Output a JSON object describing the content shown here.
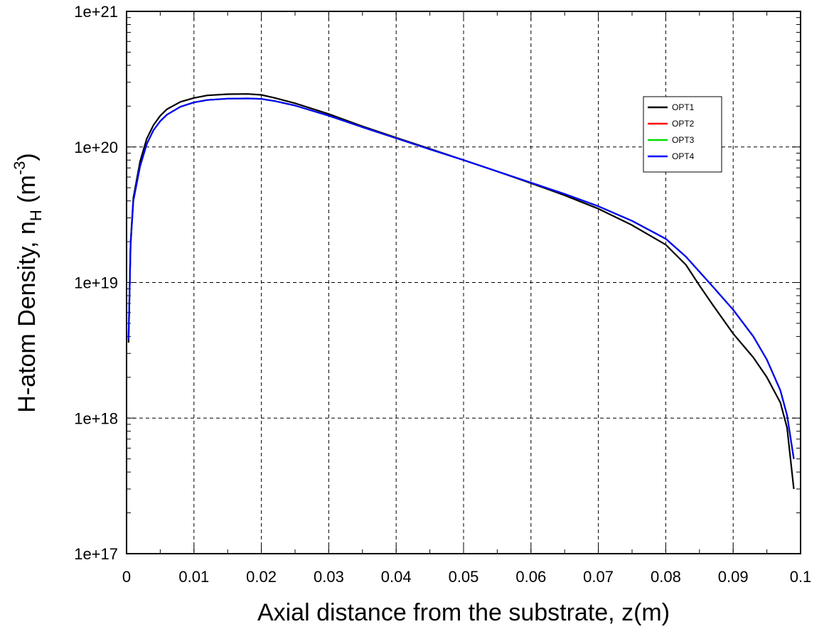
{
  "chart_data": {
    "type": "line",
    "title": "",
    "xlabel": "Axial distance from the substrate, z(m)",
    "ylabel_main": "H-atom Density,  n",
    "ylabel_sub": "H",
    "ylabel_unit_open": " (m",
    "ylabel_unit_exp": "-3",
    "ylabel_unit_close": ")",
    "xlim": [
      0,
      0.1
    ],
    "ylim": [
      1e+17,
      1e+21
    ],
    "yscale": "log",
    "grid": true,
    "legend_position": "top-right",
    "x_ticks": [
      "0",
      "0.01",
      "0.02",
      "0.03",
      "0.04",
      "0.05",
      "0.06",
      "0.07",
      "0.08",
      "0.09",
      "0.1"
    ],
    "y_ticks": [
      "1e+17",
      "1e+18",
      "1e+19",
      "1e+20",
      "1e+21"
    ],
    "series": [
      {
        "name": "OPT1",
        "color": "#000000",
        "points": [
          [
            0.0003,
            3.6e+18
          ],
          [
            0.0006,
            2e+19
          ],
          [
            0.001,
            4.2e+19
          ],
          [
            0.002,
            7.8e+19
          ],
          [
            0.003,
            1.15e+20
          ],
          [
            0.004,
            1.45e+20
          ],
          [
            0.005,
            1.7e+20
          ],
          [
            0.006,
            1.9e+20
          ],
          [
            0.008,
            2.15e+20
          ],
          [
            0.01,
            2.3e+20
          ],
          [
            0.012,
            2.4e+20
          ],
          [
            0.015,
            2.45e+20
          ],
          [
            0.018,
            2.46e+20
          ],
          [
            0.02,
            2.42e+20
          ],
          [
            0.022,
            2.3e+20
          ],
          [
            0.025,
            2.1e+20
          ],
          [
            0.03,
            1.75e+20
          ],
          [
            0.035,
            1.42e+20
          ],
          [
            0.04,
            1.17e+20
          ],
          [
            0.045,
            9.7e+19
          ],
          [
            0.05,
            8e+19
          ],
          [
            0.055,
            6.6e+19
          ],
          [
            0.06,
            5.4e+19
          ],
          [
            0.065,
            4.4e+19
          ],
          [
            0.07,
            3.5e+19
          ],
          [
            0.075,
            2.65e+19
          ],
          [
            0.08,
            1.9e+19
          ],
          [
            0.083,
            1.35e+19
          ],
          [
            0.085,
            9.5e+18
          ],
          [
            0.087,
            6.8e+18
          ],
          [
            0.09,
            4.2e+18
          ],
          [
            0.093,
            2.8e+18
          ],
          [
            0.095,
            2e+18
          ],
          [
            0.097,
            1.3e+18
          ],
          [
            0.098,
            8.5e+17
          ],
          [
            0.099,
            3e+17
          ]
        ]
      },
      {
        "name": "OPT2",
        "color": "#ff0000",
        "points": [
          [
            0.0003,
            4e+18
          ],
          [
            0.0006,
            1.9e+19
          ],
          [
            0.001,
            4e+19
          ],
          [
            0.002,
            7.2e+19
          ],
          [
            0.003,
            1.05e+20
          ],
          [
            0.004,
            1.33e+20
          ],
          [
            0.005,
            1.55e+20
          ],
          [
            0.006,
            1.73e+20
          ],
          [
            0.008,
            1.98e+20
          ],
          [
            0.01,
            2.13e+20
          ],
          [
            0.012,
            2.22e+20
          ],
          [
            0.015,
            2.27e+20
          ],
          [
            0.018,
            2.28e+20
          ],
          [
            0.02,
            2.26e+20
          ],
          [
            0.022,
            2.18e+20
          ],
          [
            0.025,
            2.02e+20
          ],
          [
            0.03,
            1.7e+20
          ],
          [
            0.035,
            1.4e+20
          ],
          [
            0.04,
            1.16e+20
          ],
          [
            0.045,
            9.6e+19
          ],
          [
            0.05,
            8e+19
          ],
          [
            0.055,
            6.6e+19
          ],
          [
            0.06,
            5.45e+19
          ],
          [
            0.065,
            4.5e+19
          ],
          [
            0.07,
            3.65e+19
          ],
          [
            0.075,
            2.85e+19
          ],
          [
            0.08,
            2.1e+19
          ],
          [
            0.083,
            1.55e+19
          ],
          [
            0.085,
            1.2e+19
          ],
          [
            0.087,
            9.3e+18
          ],
          [
            0.09,
            6.3e+18
          ],
          [
            0.093,
            4e+18
          ],
          [
            0.095,
            2.7e+18
          ],
          [
            0.097,
            1.6e+18
          ],
          [
            0.098,
            1.05e+18
          ],
          [
            0.099,
            5e+17
          ]
        ]
      },
      {
        "name": "OPT3",
        "color": "#00dd00",
        "points": [
          [
            0.0003,
            3.9e+18
          ],
          [
            0.0006,
            1.9e+19
          ],
          [
            0.001,
            4e+19
          ],
          [
            0.002,
            7.2e+19
          ],
          [
            0.003,
            1.05e+20
          ],
          [
            0.004,
            1.33e+20
          ],
          [
            0.005,
            1.55e+20
          ],
          [
            0.006,
            1.73e+20
          ],
          [
            0.008,
            1.98e+20
          ],
          [
            0.01,
            2.13e+20
          ],
          [
            0.012,
            2.22e+20
          ],
          [
            0.015,
            2.27e+20
          ],
          [
            0.018,
            2.28e+20
          ],
          [
            0.02,
            2.26e+20
          ],
          [
            0.022,
            2.18e+20
          ],
          [
            0.025,
            2.02e+20
          ],
          [
            0.03,
            1.7e+20
          ],
          [
            0.035,
            1.4e+20
          ],
          [
            0.04,
            1.16e+20
          ],
          [
            0.045,
            9.6e+19
          ],
          [
            0.05,
            8e+19
          ],
          [
            0.055,
            6.6e+19
          ],
          [
            0.06,
            5.45e+19
          ],
          [
            0.065,
            4.5e+19
          ],
          [
            0.07,
            3.65e+19
          ],
          [
            0.075,
            2.85e+19
          ],
          [
            0.08,
            2.1e+19
          ],
          [
            0.083,
            1.55e+19
          ],
          [
            0.085,
            1.2e+19
          ],
          [
            0.087,
            9.3e+18
          ],
          [
            0.09,
            6.3e+18
          ],
          [
            0.093,
            4e+18
          ],
          [
            0.095,
            2.7e+18
          ],
          [
            0.097,
            1.6e+18
          ],
          [
            0.098,
            1.05e+18
          ],
          [
            0.099,
            5e+17
          ]
        ]
      },
      {
        "name": "OPT4",
        "color": "#0000ff",
        "points": [
          [
            0.0003,
            3.8e+18
          ],
          [
            0.0006,
            1.9e+19
          ],
          [
            0.001,
            4e+19
          ],
          [
            0.002,
            7.2e+19
          ],
          [
            0.003,
            1.05e+20
          ],
          [
            0.004,
            1.33e+20
          ],
          [
            0.005,
            1.55e+20
          ],
          [
            0.006,
            1.73e+20
          ],
          [
            0.008,
            1.98e+20
          ],
          [
            0.01,
            2.13e+20
          ],
          [
            0.012,
            2.22e+20
          ],
          [
            0.015,
            2.27e+20
          ],
          [
            0.018,
            2.28e+20
          ],
          [
            0.02,
            2.26e+20
          ],
          [
            0.022,
            2.18e+20
          ],
          [
            0.025,
            2.02e+20
          ],
          [
            0.03,
            1.7e+20
          ],
          [
            0.035,
            1.4e+20
          ],
          [
            0.04,
            1.16e+20
          ],
          [
            0.045,
            9.6e+19
          ],
          [
            0.05,
            8e+19
          ],
          [
            0.055,
            6.6e+19
          ],
          [
            0.06,
            5.45e+19
          ],
          [
            0.065,
            4.5e+19
          ],
          [
            0.07,
            3.65e+19
          ],
          [
            0.075,
            2.85e+19
          ],
          [
            0.08,
            2.1e+19
          ],
          [
            0.083,
            1.55e+19
          ],
          [
            0.085,
            1.2e+19
          ],
          [
            0.087,
            9.3e+18
          ],
          [
            0.09,
            6.3e+18
          ],
          [
            0.093,
            4e+18
          ],
          [
            0.095,
            2.7e+18
          ],
          [
            0.097,
            1.6e+18
          ],
          [
            0.098,
            1.05e+18
          ],
          [
            0.099,
            5e+17
          ]
        ]
      }
    ]
  }
}
